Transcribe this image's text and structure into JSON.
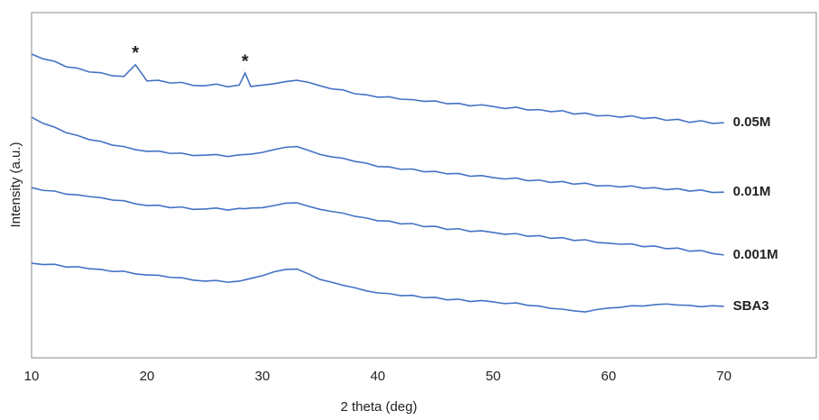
{
  "chart_data": {
    "type": "line",
    "x_label": "2 theta (deg)",
    "y_label": "Intensity (a.u.)",
    "x": [
      10,
      11,
      12,
      13,
      14,
      15,
      16,
      17,
      18,
      19,
      20,
      21,
      22,
      23,
      24,
      25,
      26,
      27,
      28,
      28.5,
      29,
      30,
      31,
      32,
      33,
      34,
      35,
      36,
      37,
      38,
      39,
      40,
      41,
      42,
      43,
      44,
      45,
      46,
      47,
      48,
      49,
      50,
      51,
      52,
      53,
      54,
      55,
      56,
      57,
      58,
      59,
      60,
      61,
      62,
      63,
      64,
      65,
      66,
      67,
      68,
      69,
      70
    ],
    "xlim": [
      10,
      78
    ],
    "xticks": [
      10,
      20,
      30,
      40,
      50,
      60,
      70
    ],
    "ylim": [
      0,
      100
    ],
    "series": [
      {
        "name": "0.05M",
        "color": "#4472c4",
        "values": [
          88.0,
          86.6,
          85.9,
          84.3,
          83.9,
          82.8,
          82.6,
          81.7,
          81.5,
          84.9,
          80.2,
          80.4,
          79.6,
          79.8,
          78.9,
          78.8,
          79.3,
          78.5,
          79.0,
          82.5,
          78.6,
          79.0,
          79.4,
          80.0,
          80.4,
          79.8,
          78.8,
          77.9,
          77.6,
          76.5,
          76.2,
          75.5,
          75.6,
          74.9,
          74.8,
          74.3,
          74.4,
          73.6,
          73.7,
          73.0,
          73.3,
          72.8,
          72.2,
          72.6,
          71.8,
          71.9,
          71.3,
          71.6,
          70.6,
          70.9,
          70.1,
          70.2,
          69.7,
          70.1,
          69.3,
          69.6,
          68.8,
          69.1,
          68.2,
          68.7,
          67.9,
          68.1
        ]
      },
      {
        "name": "0.01M",
        "color": "#4472c4",
        "values": [
          69.7,
          67.9,
          66.8,
          65.2,
          64.4,
          63.2,
          62.7,
          61.6,
          61.2,
          60.3,
          59.8,
          59.9,
          59.2,
          59.3,
          58.6,
          58.7,
          58.9,
          58.3,
          58.8,
          58.9,
          59.0,
          59.5,
          60.3,
          61.0,
          61.2,
          60.1,
          58.9,
          58.2,
          57.8,
          56.9,
          56.4,
          55.4,
          55.3,
          54.6,
          54.7,
          53.9,
          54.0,
          53.3,
          53.4,
          52.6,
          52.8,
          52.2,
          51.8,
          52.1,
          51.3,
          51.5,
          50.8,
          51.1,
          50.3,
          50.6,
          49.8,
          49.9,
          49.5,
          49.8,
          49.1,
          49.3,
          48.7,
          49.0,
          48.3,
          48.6,
          47.9,
          48.0
        ]
      },
      {
        "name": "0.001M",
        "color": "#4472c4",
        "values": [
          49.3,
          48.5,
          48.3,
          47.4,
          47.2,
          46.7,
          46.4,
          45.7,
          45.5,
          44.6,
          44.1,
          44.2,
          43.5,
          43.7,
          43.0,
          43.1,
          43.4,
          42.8,
          43.3,
          43.2,
          43.4,
          43.5,
          44.1,
          44.8,
          44.9,
          43.9,
          43.0,
          42.4,
          41.9,
          41.0,
          40.5,
          39.7,
          39.6,
          38.8,
          38.9,
          38.0,
          38.1,
          37.2,
          37.4,
          36.6,
          36.8,
          36.3,
          35.8,
          36.0,
          35.2,
          35.4,
          34.6,
          34.8,
          34.0,
          34.2,
          33.4,
          33.2,
          32.9,
          33.0,
          32.2,
          32.4,
          31.6,
          31.8,
          30.9,
          31.1,
          30.2,
          29.8
        ]
      },
      {
        "name": "SBA3",
        "color": "#4472c4",
        "values": [
          27.4,
          27.0,
          27.1,
          26.3,
          26.4,
          25.8,
          25.6,
          25.0,
          25.1,
          24.3,
          24.0,
          23.9,
          23.3,
          23.2,
          22.5,
          22.2,
          22.4,
          21.9,
          22.2,
          22.6,
          23.0,
          23.8,
          24.9,
          25.6,
          25.7,
          24.3,
          22.7,
          21.9,
          21.0,
          20.3,
          19.4,
          18.8,
          18.6,
          18.0,
          18.1,
          17.4,
          17.5,
          16.8,
          17.0,
          16.3,
          16.6,
          16.2,
          15.7,
          15.9,
          15.2,
          15.0,
          14.3,
          14.1,
          13.6,
          13.3,
          14.0,
          14.4,
          14.6,
          15.1,
          15.0,
          15.4,
          15.6,
          15.3,
          15.2,
          14.8,
          15.1,
          14.9
        ]
      }
    ],
    "annotations": [
      {
        "text": "*",
        "x": 19
      },
      {
        "text": "*",
        "x": 28.5
      }
    ]
  }
}
